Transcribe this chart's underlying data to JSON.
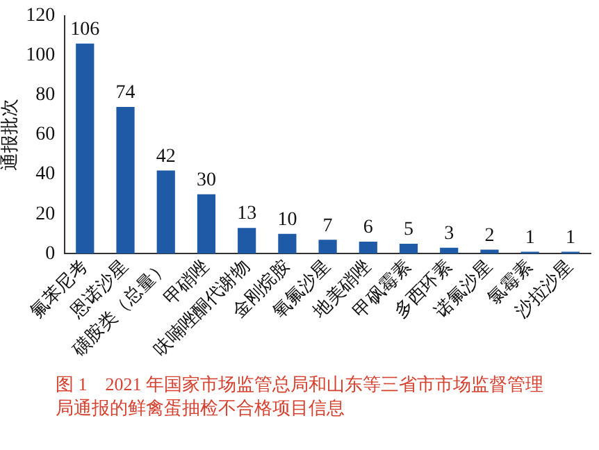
{
  "chart_data": {
    "type": "bar",
    "ylabel": "通报批次",
    "categories": [
      "氟苯尼考",
      "恩诺沙星",
      "磺胺类（总量）",
      "甲硝唑",
      "呋喃唑酮代谢物",
      "金刚烷胺",
      "氧氟沙星",
      "地美硝唑",
      "甲砜霉素",
      "多西环素",
      "诺氟沙星",
      "氯霉素",
      "沙拉沙星"
    ],
    "values": [
      106,
      74,
      42,
      30,
      13,
      10,
      7,
      6,
      5,
      3,
      2,
      1,
      1
    ],
    "color": "#1f5aa6",
    "ylim": [
      0,
      120
    ],
    "yticks": [
      0,
      20,
      40,
      60,
      80,
      100,
      120
    ],
    "grid": false,
    "legend": false,
    "data_labels": true,
    "annotations": [
      "图 1　2021 年国家市场监管总局和山东等三省市市场监督管理局通报的鲜禽蛋抽检不合格项目信息"
    ]
  }
}
